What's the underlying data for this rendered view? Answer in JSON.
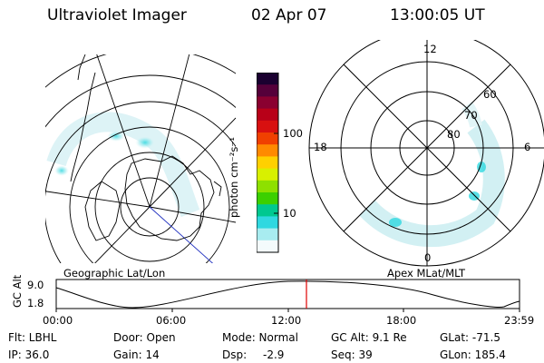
{
  "header": {
    "instrument": "Ultraviolet Imager",
    "date": "02 Apr 07",
    "time": "13:00:05 UT"
  },
  "left_map": {
    "caption": "Geographic Lat/Lon"
  },
  "colorbar": {
    "unit_label": "photon cm⁻²s⁻¹",
    "tick_labels": [
      "100",
      "10"
    ],
    "colors_top_to_bottom": [
      "#1a0030",
      "#55003a",
      "#8a0030",
      "#b80018",
      "#d81010",
      "#f04000",
      "#ff8a00",
      "#ffd000",
      "#d8f000",
      "#8ee000",
      "#3cd000",
      "#00c890",
      "#30d8e0",
      "#a8ecf0",
      "#f4fbfc"
    ]
  },
  "right_map": {
    "caption": "Apex MLat/MLT",
    "mlt_labels": {
      "top": "12",
      "left": "18",
      "right": "6",
      "bottom": "0"
    },
    "mlat_labels": [
      "60",
      "70",
      "80"
    ]
  },
  "altitude_plot": {
    "ylabel": "GC Alt",
    "y_ticks": [
      "9.0",
      "1.8"
    ],
    "x_ticks": [
      "00:00",
      "06:00",
      "12:00",
      "18:00",
      "23:59"
    ],
    "current_marker_color": "#e00000"
  },
  "status": {
    "flt": "Flt: LBHL",
    "ip": "IP: 36.0",
    "door": "Door: Open",
    "gain": "Gain: 14",
    "mode": "Mode: Normal",
    "dsp_label": "Dsp:",
    "dsp_value": "-2.9",
    "gc_alt": "GC Alt: 9.1 Re",
    "seq": "Seq: 39",
    "glat": "GLat: -71.5",
    "glon": "GLon: 185.4"
  }
}
